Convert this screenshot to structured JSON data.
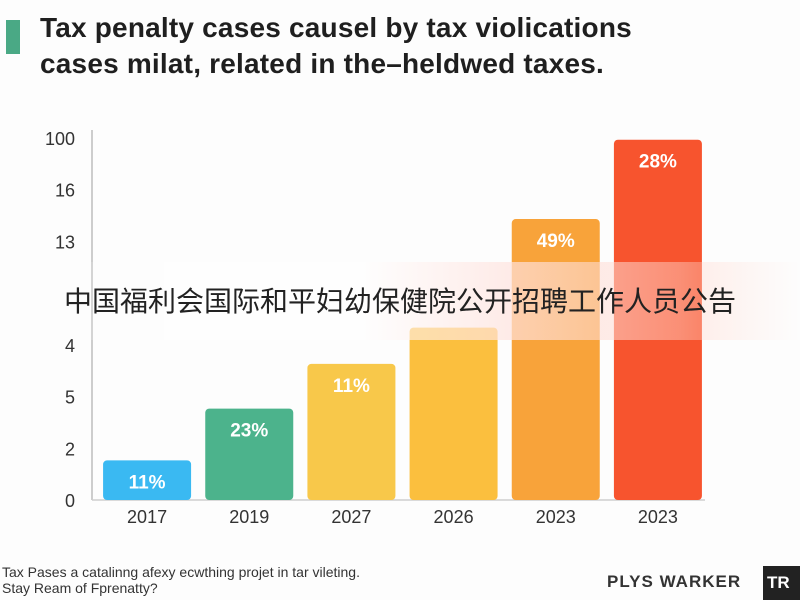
{
  "title": {
    "line1": "Tax penalty cases causel by tax violications",
    "line2": "cases milat, related in the–heldwed taxes."
  },
  "banner_text": "中国福利会国际和平妇幼保健院公开招聘工作人员公告",
  "footnote": {
    "line1": "Tax Pases a catalinng afexy ecwthing projet in tar vileting.",
    "line2": "Stay Ream of Fprenatty?"
  },
  "brand": {
    "name": "PLYS WARKER",
    "box": "TR"
  },
  "colors": {
    "accent": "#4aa985"
  },
  "chart_data": {
    "type": "bar",
    "categories": [
      "2017",
      "2019",
      "2027",
      "2026",
      "2023",
      "2023"
    ],
    "values": [
      2.3,
      5.3,
      7.9,
      10,
      16.3,
      20.9
    ],
    "data_labels": [
      "11%",
      "23%",
      "11%",
      "",
      "49%",
      "28%"
    ],
    "colors": [
      "#3ab9f2",
      "#4cb38c",
      "#f8c84a",
      "#fbbf3e",
      "#f8a33a",
      "#f7542e"
    ],
    "y_ticks": [
      "0",
      "2",
      "5",
      "4",
      "",
      "13",
      "16",
      "100"
    ],
    "ylim": [
      0,
      21
    ],
    "grid": false,
    "title": "",
    "xlabel": "",
    "ylabel": ""
  }
}
